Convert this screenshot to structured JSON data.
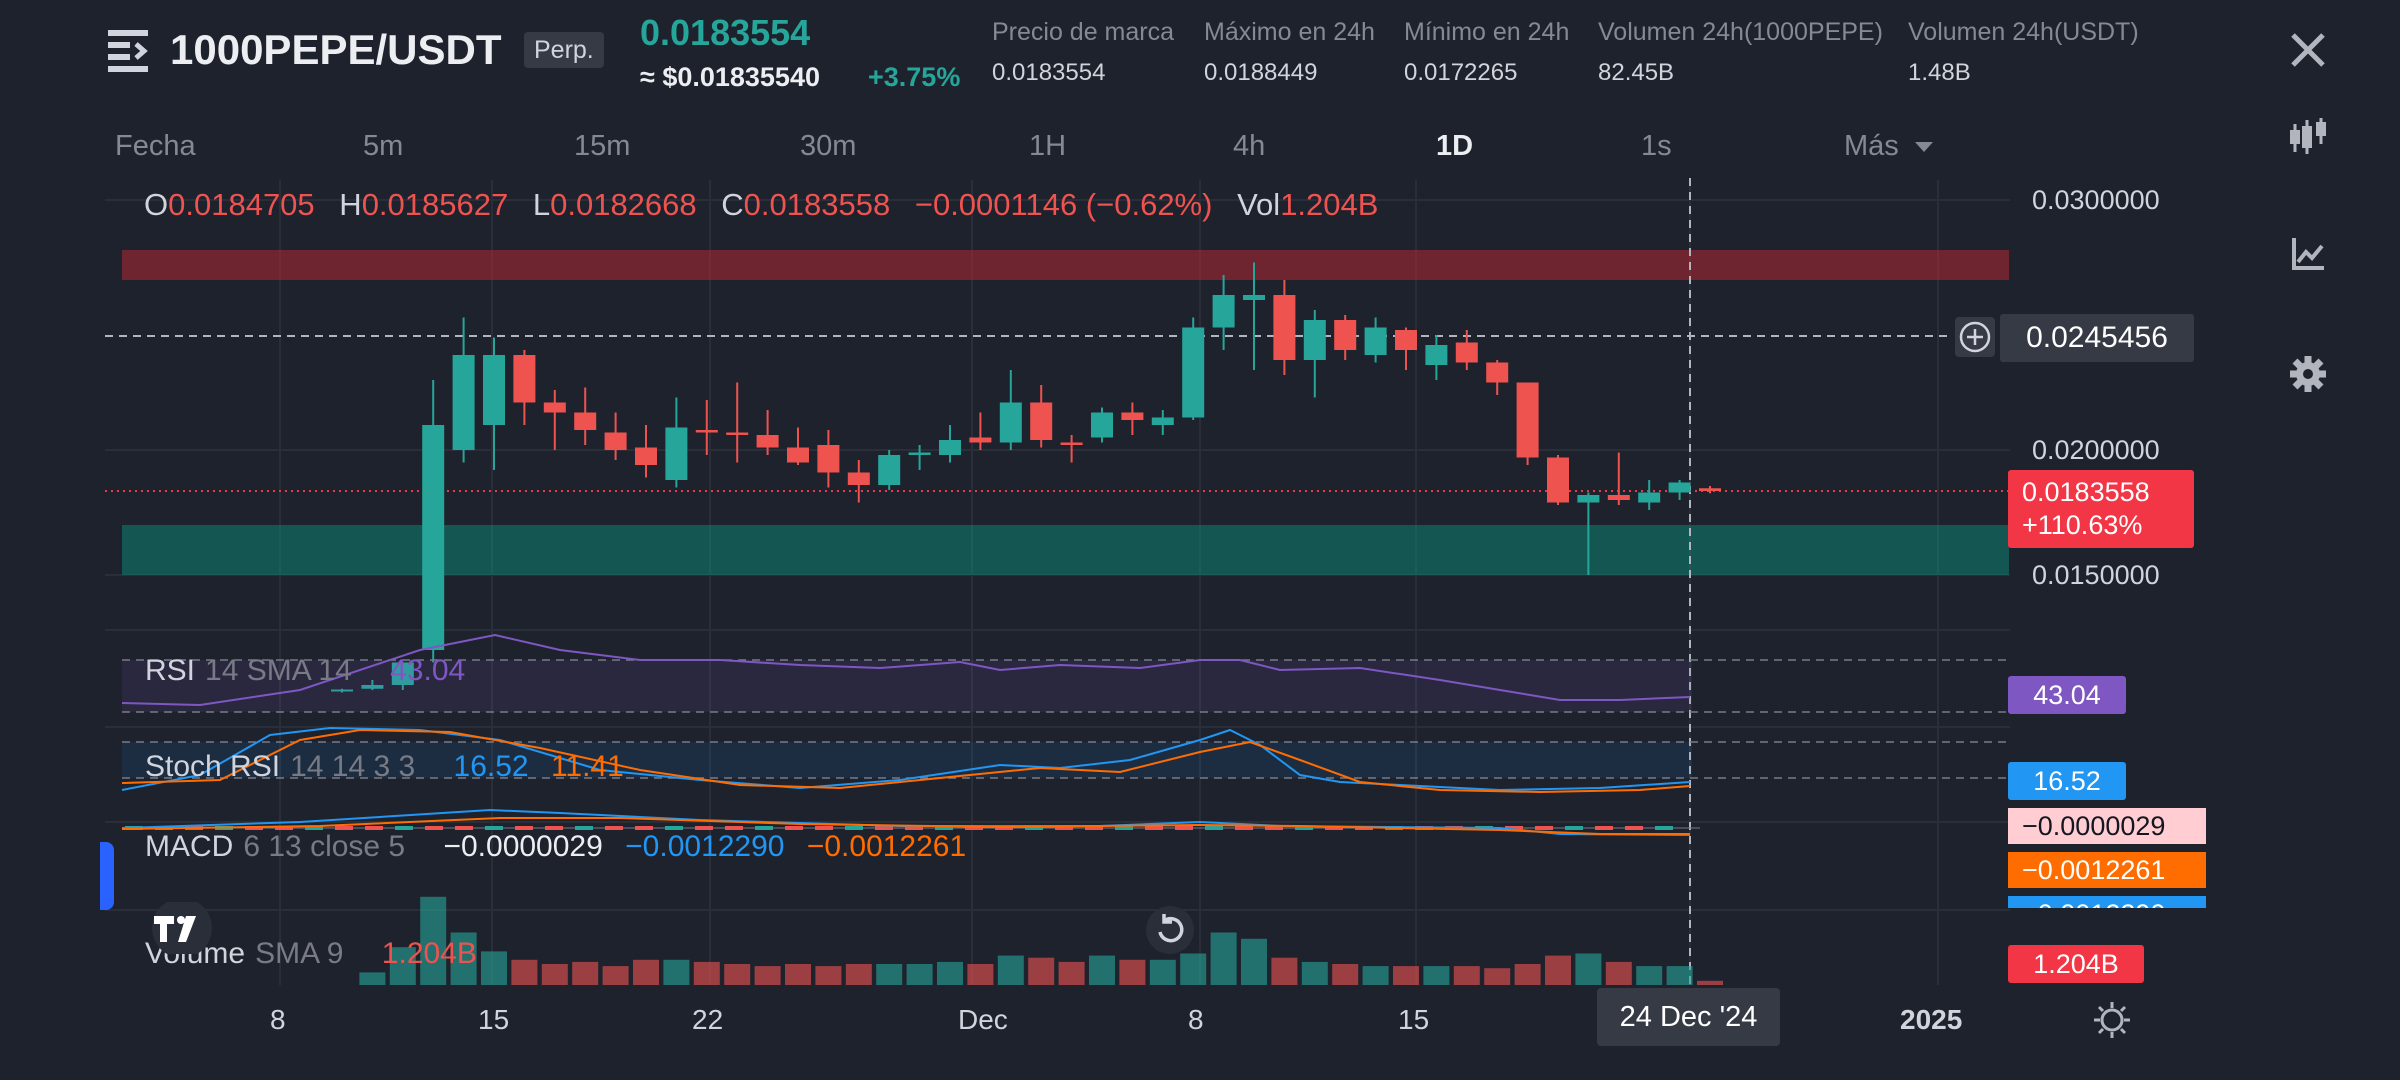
{
  "header": {
    "symbol": "1000PEPE/USDT",
    "badge": "Perp.",
    "last_price": "0.0183554",
    "usd_price": "≈ $0.01835540",
    "change_pct": "+3.75%",
    "stats": [
      {
        "label": "Precio de marca",
        "value": "0.0183554"
      },
      {
        "label": "Máximo en 24h",
        "value": "0.0188449"
      },
      {
        "label": "Mínimo en 24h",
        "value": "0.0172265"
      },
      {
        "label": "Volumen 24h(1000PEPE)",
        "value": "82.45B"
      },
      {
        "label": "Volumen 24h(USDT)",
        "value": "1.48B"
      }
    ]
  },
  "timeframes": [
    "Fecha",
    "5m",
    "15m",
    "30m",
    "1H",
    "4h",
    "1D",
    "1s",
    "Más"
  ],
  "active_timeframe": "1D",
  "side_icons": [
    "close-icon",
    "drawing-tools-icon",
    "indicators-icon",
    "settings-icon"
  ],
  "ohlc": {
    "o_label": "O",
    "o": "0.0184705",
    "h_label": "H",
    "h": "0.0185627",
    "l_label": "L",
    "l": "0.0182668",
    "c_label": "C",
    "c": "0.0183558",
    "change": "−0.0001146 (−0.62%)",
    "vol_label": "Vol",
    "vol": "1.204B"
  },
  "price_axis": {
    "labels": [
      "0.0300000",
      "0.0200000",
      "0.0150000"
    ],
    "crosshair_price": "0.0245456",
    "current_price": "0.0183558",
    "current_change": "+110.63%"
  },
  "indicators": {
    "rsi": {
      "name": "RSI",
      "params": "14 SMA 14",
      "value": "43.04",
      "tag": "43.04"
    },
    "stoch": {
      "name": "Stoch RSI",
      "params": "14 14 3 3",
      "k": "16.52",
      "d": "11.41",
      "tag": "16.52"
    },
    "macd": {
      "name": "MACD",
      "params": "6 13 close 5",
      "hist": "−0.0000029",
      "macd": "−0.0012290",
      "signal": "−0.0012261",
      "tag_hist": "−0.0000029",
      "tag_signal": "−0.0012261",
      "tag_macd": "−0.0012290"
    },
    "volume": {
      "name": "Volume",
      "params": "SMA 9",
      "value": "1.204B",
      "tag": "1.204B"
    }
  },
  "date_axis": [
    "8",
    "15",
    "22",
    "Dec",
    "8",
    "15",
    "2025"
  ],
  "crosshair_date": "24 Dec '24",
  "colors": {
    "up": "#26a69a",
    "down": "#ef5350",
    "rsi": "#7e57c2",
    "stoch_k": "#2196f3",
    "stoch_d": "#ff6d00",
    "bg": "#1e222d"
  },
  "chart_data": {
    "type": "candlestick",
    "ylim": [
      0.0105,
      0.031
    ],
    "candles": [
      {
        "o": 0.0104,
        "h": 0.01045,
        "l": 0.0103,
        "c": 0.01042
      },
      {
        "o": 0.01045,
        "h": 0.0108,
        "l": 0.0104,
        "c": 0.0106
      },
      {
        "o": 0.0106,
        "h": 0.0113,
        "l": 0.0104,
        "c": 0.0115
      },
      {
        "o": 0.012,
        "h": 0.0228,
        "l": 0.0115,
        "c": 0.021
      },
      {
        "o": 0.02,
        "h": 0.0253,
        "l": 0.0195,
        "c": 0.0238
      },
      {
        "o": 0.021,
        "h": 0.0245,
        "l": 0.0192,
        "c": 0.0238
      },
      {
        "o": 0.0238,
        "h": 0.024,
        "l": 0.021,
        "c": 0.0219
      },
      {
        "o": 0.0219,
        "h": 0.0224,
        "l": 0.02,
        "c": 0.0215
      },
      {
        "o": 0.0215,
        "h": 0.0225,
        "l": 0.0202,
        "c": 0.0208
      },
      {
        "o": 0.0207,
        "h": 0.0215,
        "l": 0.0196,
        "c": 0.02
      },
      {
        "o": 0.0201,
        "h": 0.021,
        "l": 0.0189,
        "c": 0.0194
      },
      {
        "o": 0.0188,
        "h": 0.0221,
        "l": 0.0185,
        "c": 0.0209
      },
      {
        "o": 0.0208,
        "h": 0.022,
        "l": 0.0198,
        "c": 0.0207
      },
      {
        "o": 0.0207,
        "h": 0.0227,
        "l": 0.0195,
        "c": 0.0206
      },
      {
        "o": 0.0206,
        "h": 0.0216,
        "l": 0.0198,
        "c": 0.0201
      },
      {
        "o": 0.0201,
        "h": 0.0209,
        "l": 0.0194,
        "c": 0.0195
      },
      {
        "o": 0.0202,
        "h": 0.0208,
        "l": 0.0185,
        "c": 0.0191
      },
      {
        "o": 0.0191,
        "h": 0.0196,
        "l": 0.0179,
        "c": 0.0186
      },
      {
        "o": 0.0186,
        "h": 0.02,
        "l": 0.0184,
        "c": 0.0198
      },
      {
        "o": 0.0198,
        "h": 0.0202,
        "l": 0.0192,
        "c": 0.0199
      },
      {
        "o": 0.0198,
        "h": 0.021,
        "l": 0.0195,
        "c": 0.0204
      },
      {
        "o": 0.0205,
        "h": 0.0215,
        "l": 0.02,
        "c": 0.0203
      },
      {
        "o": 0.0203,
        "h": 0.0232,
        "l": 0.02,
        "c": 0.0219
      },
      {
        "o": 0.0219,
        "h": 0.0226,
        "l": 0.0201,
        "c": 0.0204
      },
      {
        "o": 0.0203,
        "h": 0.0206,
        "l": 0.0195,
        "c": 0.0202
      },
      {
        "o": 0.0205,
        "h": 0.0217,
        "l": 0.0203,
        "c": 0.0215
      },
      {
        "o": 0.0215,
        "h": 0.0219,
        "l": 0.0206,
        "c": 0.0212
      },
      {
        "o": 0.021,
        "h": 0.0216,
        "l": 0.0206,
        "c": 0.0213
      },
      {
        "o": 0.0213,
        "h": 0.0253,
        "l": 0.0212,
        "c": 0.0249
      },
      {
        "o": 0.0249,
        "h": 0.027,
        "l": 0.024,
        "c": 0.0262
      },
      {
        "o": 0.026,
        "h": 0.0275,
        "l": 0.0232,
        "c": 0.0262
      },
      {
        "o": 0.0262,
        "h": 0.0268,
        "l": 0.023,
        "c": 0.0236
      },
      {
        "o": 0.0236,
        "h": 0.0256,
        "l": 0.0221,
        "c": 0.0252
      },
      {
        "o": 0.0252,
        "h": 0.0254,
        "l": 0.0236,
        "c": 0.024
      },
      {
        "o": 0.0238,
        "h": 0.0253,
        "l": 0.0235,
        "c": 0.0249
      },
      {
        "o": 0.0248,
        "h": 0.0249,
        "l": 0.0232,
        "c": 0.024
      },
      {
        "o": 0.0234,
        "h": 0.0246,
        "l": 0.0228,
        "c": 0.0242
      },
      {
        "o": 0.0243,
        "h": 0.0248,
        "l": 0.0232,
        "c": 0.0235
      },
      {
        "o": 0.0235,
        "h": 0.0236,
        "l": 0.0222,
        "c": 0.0227
      },
      {
        "o": 0.0227,
        "h": 0.0227,
        "l": 0.0194,
        "c": 0.0197
      },
      {
        "o": 0.0197,
        "h": 0.0198,
        "l": 0.0178,
        "c": 0.0179
      },
      {
        "o": 0.0179,
        "h": 0.0183,
        "l": 0.015,
        "c": 0.0182
      },
      {
        "o": 0.0182,
        "h": 0.0199,
        "l": 0.0178,
        "c": 0.018
      },
      {
        "o": 0.0179,
        "h": 0.0188,
        "l": 0.0176,
        "c": 0.0183
      },
      {
        "o": 0.0183,
        "h": 0.0188,
        "l": 0.018,
        "c": 0.0187
      },
      {
        "o": 0.01847,
        "h": 0.01856,
        "l": 0.01827,
        "c": 0.01836
      }
    ],
    "volume": [
      0.0,
      0.06,
      0.18,
      0.42,
      0.25,
      0.16,
      0.12,
      0.1,
      0.11,
      0.09,
      0.12,
      0.12,
      0.11,
      0.1,
      0.09,
      0.1,
      0.09,
      0.1,
      0.1,
      0.1,
      0.11,
      0.1,
      0.14,
      0.13,
      0.11,
      0.14,
      0.12,
      0.12,
      0.15,
      0.25,
      0.22,
      0.13,
      0.11,
      0.1,
      0.09,
      0.09,
      0.09,
      0.09,
      0.08,
      0.1,
      0.14,
      0.15,
      0.11,
      0.09,
      0.09,
      0.02
    ],
    "zones": [
      {
        "type": "resistance",
        "from": 0.0268,
        "to": 0.028
      },
      {
        "type": "support",
        "from": 0.015,
        "to": 0.017
      }
    ]
  }
}
